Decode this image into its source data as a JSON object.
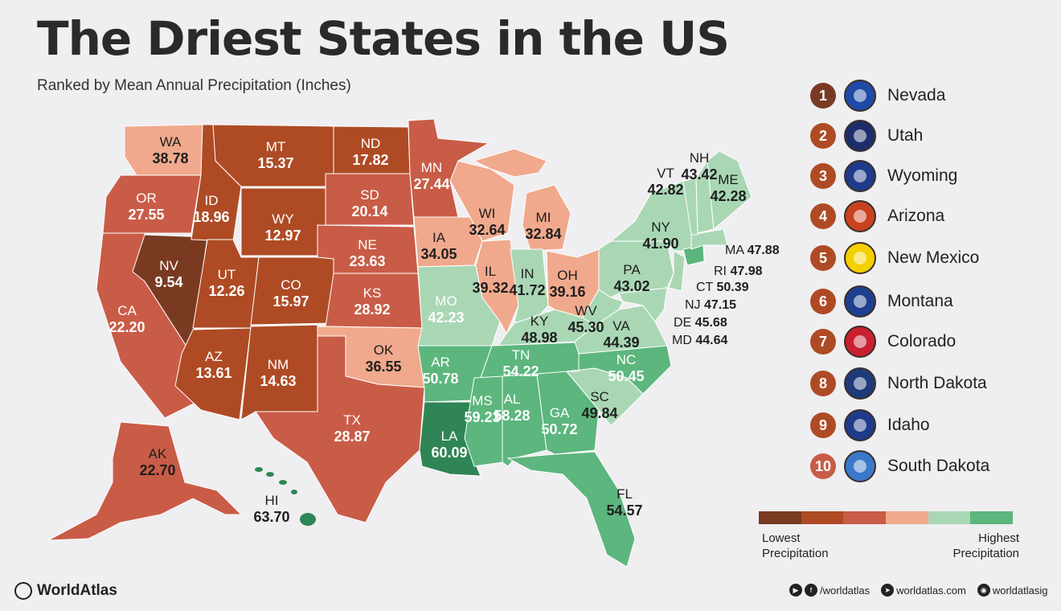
{
  "header": {
    "title": "The Driest States in the US",
    "subtitle": "Ranked by Mean Annual Precipitation (Inches)"
  },
  "colors": {
    "driest": "#7a3a22",
    "dry": "#ae4b25",
    "moderate_dry": "#c95c47",
    "moderate": "#f0a98c",
    "wet": "#a9d7b4",
    "wetter": "#5cb67e",
    "wettest": "#2f8555"
  },
  "states": [
    {
      "abbr": "WA",
      "value": "38.78"
    },
    {
      "abbr": "OR",
      "value": "27.55"
    },
    {
      "abbr": "CA",
      "value": "22.20"
    },
    {
      "abbr": "NV",
      "value": "9.54"
    },
    {
      "abbr": "ID",
      "value": "18.96"
    },
    {
      "abbr": "MT",
      "value": "15.37"
    },
    {
      "abbr": "WY",
      "value": "12.97"
    },
    {
      "abbr": "UT",
      "value": "12.26"
    },
    {
      "abbr": "CO",
      "value": "15.97"
    },
    {
      "abbr": "AZ",
      "value": "13.61"
    },
    {
      "abbr": "NM",
      "value": "14.63"
    },
    {
      "abbr": "ND",
      "value": "17.82"
    },
    {
      "abbr": "SD",
      "value": "20.14"
    },
    {
      "abbr": "NE",
      "value": "23.63"
    },
    {
      "abbr": "KS",
      "value": "28.92"
    },
    {
      "abbr": "OK",
      "value": "36.55"
    },
    {
      "abbr": "TX",
      "value": "28.87"
    },
    {
      "abbr": "MN",
      "value": "27.44"
    },
    {
      "abbr": "IA",
      "value": "34.05"
    },
    {
      "abbr": "MO",
      "value": "42.23"
    },
    {
      "abbr": "AR",
      "value": "50.78"
    },
    {
      "abbr": "LA",
      "value": "60.09"
    },
    {
      "abbr": "WI",
      "value": "32.64"
    },
    {
      "abbr": "IL",
      "value": "39.32"
    },
    {
      "abbr": "MI",
      "value": "32.84"
    },
    {
      "abbr": "IN",
      "value": "41.72"
    },
    {
      "abbr": "OH",
      "value": "39.16"
    },
    {
      "abbr": "KY",
      "value": "48.98"
    },
    {
      "abbr": "TN",
      "value": "54.22"
    },
    {
      "abbr": "MS",
      "value": "59.23"
    },
    {
      "abbr": "AL",
      "value": "58.28"
    },
    {
      "abbr": "GA",
      "value": "50.72"
    },
    {
      "abbr": "FL",
      "value": "54.57"
    },
    {
      "abbr": "SC",
      "value": "49.84"
    },
    {
      "abbr": "NC",
      "value": "50.45"
    },
    {
      "abbr": "VA",
      "value": "44.39"
    },
    {
      "abbr": "WV",
      "value": "45.30"
    },
    {
      "abbr": "PA",
      "value": "43.02"
    },
    {
      "abbr": "NY",
      "value": "41.90"
    },
    {
      "abbr": "VT",
      "value": "42.82"
    },
    {
      "abbr": "NH",
      "value": "43.42"
    },
    {
      "abbr": "ME",
      "value": "42.28"
    },
    {
      "abbr": "MA",
      "value": "47.88"
    },
    {
      "abbr": "RI",
      "value": "47.98"
    },
    {
      "abbr": "CT",
      "value": "50.39"
    },
    {
      "abbr": "NJ",
      "value": "47.15"
    },
    {
      "abbr": "DE",
      "value": "45.68"
    },
    {
      "abbr": "MD",
      "value": "44.64"
    },
    {
      "abbr": "AK",
      "value": "22.70"
    },
    {
      "abbr": "HI",
      "value": "63.70"
    }
  ],
  "ranking": [
    {
      "rank": "1",
      "name": "Nevada",
      "flag_color": "#1e4aa8",
      "badge_color": "#7a3a22"
    },
    {
      "rank": "2",
      "name": "Utah",
      "flag_color": "#1b2d6b",
      "badge_color": "#ae4b25"
    },
    {
      "rank": "3",
      "name": "Wyoming",
      "flag_color": "#1f3a8a",
      "badge_color": "#ae4b25"
    },
    {
      "rank": "4",
      "name": "Arizona",
      "flag_color": "#c9421f",
      "badge_color": "#ae4b25"
    },
    {
      "rank": "5",
      "name": "New Mexico",
      "flag_color": "#f5d000",
      "badge_color": "#ae4b25"
    },
    {
      "rank": "6",
      "name": "Montana",
      "flag_color": "#1e3f8f",
      "badge_color": "#ae4b25"
    },
    {
      "rank": "7",
      "name": "Colorado",
      "flag_color": "#c8202f",
      "badge_color": "#ae4b25"
    },
    {
      "rank": "8",
      "name": "North Dakota",
      "flag_color": "#1e3a7a",
      "badge_color": "#ae4b25"
    },
    {
      "rank": "9",
      "name": "Idaho",
      "flag_color": "#1e3a8a",
      "badge_color": "#ae4b25"
    },
    {
      "rank": "10",
      "name": "South Dakota",
      "flag_color": "#3a78c8",
      "badge_color": "#c95c47"
    }
  ],
  "scale": {
    "colors": [
      "#7a3a22",
      "#ae4b25",
      "#c95c47",
      "#f0a98c",
      "#a9d7b4",
      "#5cb67e"
    ],
    "low_label_1": "Lowest",
    "low_label_2": "Precipitation",
    "high_label_1": "Highest",
    "high_label_2": "Precipitation"
  },
  "footer": {
    "brand": "WorldAtlas",
    "facebook": "/worldatlas",
    "website": "worldatlas.com",
    "instagram": "worldatlasig"
  }
}
